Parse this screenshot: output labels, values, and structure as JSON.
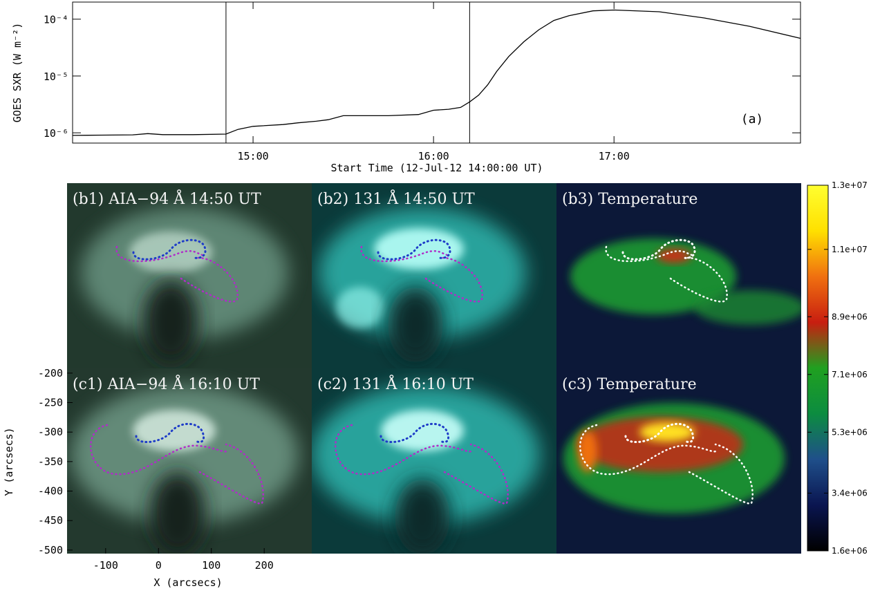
{
  "chart_data": [
    {
      "type": "line",
      "ylabel": "GOES SXR (W m⁻²)",
      "xlabel": "Start Time (12-Jul-12 14:00:00 UT)",
      "annotation": "(a)",
      "color": "#000000",
      "yscale": "log",
      "x": [
        "14:00",
        "14:10",
        "14:20",
        "14:25",
        "14:30",
        "14:40",
        "14:51",
        "14:55",
        "15:00",
        "15:10",
        "15:15",
        "15:21",
        "15:25",
        "15:30",
        "15:45",
        "15:55",
        "16:00",
        "16:05",
        "16:09",
        "16:12",
        "16:15",
        "16:18",
        "16:21",
        "16:25",
        "16:30",
        "16:35",
        "16:40",
        "16:45",
        "16:53",
        "17:00",
        "17:15",
        "17:30",
        "17:45",
        "18:02"
      ],
      "values": [
        9e-07,
        9.1e-07,
        9.2e-07,
        9.7e-07,
        9.3e-07,
        9.3e-07,
        9.5e-07,
        1.15e-06,
        1.3e-06,
        1.4e-06,
        1.5e-06,
        1.6e-06,
        1.7e-06,
        2e-06,
        2e-06,
        2.1e-06,
        2.5e-06,
        2.6e-06,
        2.8e-06,
        3.5e-06,
        4.6e-06,
        7e-06,
        1.2e-05,
        2.2e-05,
        4e-05,
        6.5e-05,
        9.5e-05,
        0.000115,
        0.00014,
        0.000145,
        0.000135,
        0.000105,
        7.5e-05,
        4.6e-05
      ],
      "vlines": [
        "14:51",
        "16:12"
      ],
      "xlim": [
        "14:00",
        "18:02"
      ],
      "xticks": [
        "15:00",
        "16:00",
        "17:00"
      ],
      "ylim": [
        6.6e-07,
        0.0002
      ],
      "yticks": [
        {
          "value": 1e-06,
          "label": "10⁻⁶"
        },
        {
          "value": 1e-05,
          "label": "10⁻⁵"
        },
        {
          "value": 0.0001,
          "label": "10⁻⁴"
        }
      ]
    },
    {
      "type": "image",
      "xlabel": "X (arcsecs)",
      "ylabel": "Y (arcsecs)",
      "panels": [
        {
          "title": "(b1) AIA−94 Å 14:50 UT"
        },
        {
          "title": "(b2) 131 Å 14:50 UT"
        },
        {
          "title": "(b3) Temperature"
        },
        {
          "title": "(c1) AIA−94 Å 16:10 UT"
        },
        {
          "title": "(c2) 131 Å 16:10 UT"
        },
        {
          "title": "(c3) Temperature"
        }
      ],
      "xlim": [
        -173,
        290
      ],
      "xticks": [
        -100,
        0,
        100,
        200
      ],
      "ylim": [
        -506,
        -192
      ],
      "yticks": [
        -200,
        -250,
        -300,
        -350,
        -400,
        -450,
        -500
      ]
    },
    {
      "type": "colorbar",
      "colormap": [
        "#000000",
        "#0a1550",
        "#1f4f8a",
        "#0c8c40",
        "#20a020",
        "#c81e10",
        "#f07010",
        "#ffe000",
        "#ffff30"
      ],
      "clim": [
        1600000,
        13000000
      ],
      "ticks": [
        {
          "value": 1600000,
          "label": "1.6e+06"
        },
        {
          "value": 3400000,
          "label": "3.4e+06"
        },
        {
          "value": 5300000,
          "label": "5.3e+06"
        },
        {
          "value": 7100000,
          "label": "7.1e+06"
        },
        {
          "value": 8900000,
          "label": "8.9e+06"
        },
        {
          "value": 11000000,
          "label": "1.1e+07"
        },
        {
          "value": 13000000,
          "label": "1.3e+07"
        }
      ]
    }
  ]
}
